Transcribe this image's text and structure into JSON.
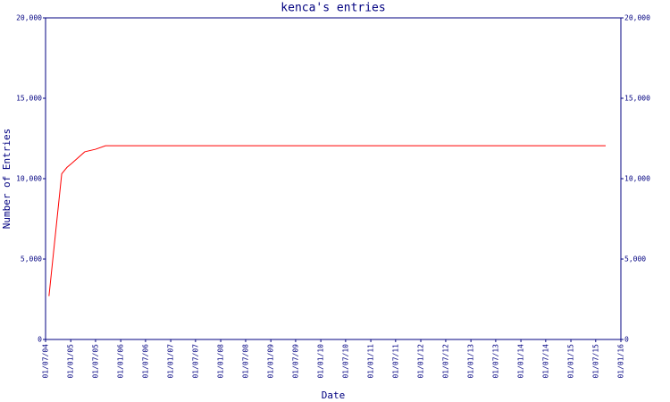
{
  "chart_data": {
    "type": "line",
    "title": "kenca's entries",
    "x_label": "Date",
    "y_label": "Number of Entries",
    "x": [
      "26/07/04",
      "27/10/04",
      "04/12/04",
      "08/01/05",
      "13/04/05",
      "01/07/05",
      "12/09/05",
      "12/09/15"
    ],
    "series": [
      {
        "name": "entries",
        "color": "#ff0000",
        "values": [
          2700,
          10300,
          10700,
          10950,
          11670,
          11830,
          12050,
          12050
        ]
      }
    ],
    "xlim": [
      "01/07/04",
      "01/01/16"
    ],
    "xticks": [
      "01/07/04",
      "01/01/05",
      "01/07/05",
      "01/01/06",
      "01/07/06",
      "01/01/07",
      "01/07/07",
      "01/01/08",
      "01/07/08",
      "01/01/09",
      "01/07/09",
      "01/01/10",
      "01/07/10",
      "01/01/11",
      "01/07/11",
      "01/01/12",
      "01/07/12",
      "01/01/13",
      "01/07/13",
      "01/01/14",
      "01/07/14",
      "01/01/15",
      "01/07/15",
      "01/01/16"
    ],
    "ylim": [
      0,
      20000
    ],
    "yticks": [
      0,
      {
        "value": 5000,
        "label": "5,000"
      },
      {
        "value": 10000,
        "label": "10,000"
      },
      {
        "value": 15000,
        "label": "15,000"
      },
      {
        "value": 20000,
        "label": "20,000"
      }
    ],
    "axis_color": "#000080",
    "grid": false
  }
}
